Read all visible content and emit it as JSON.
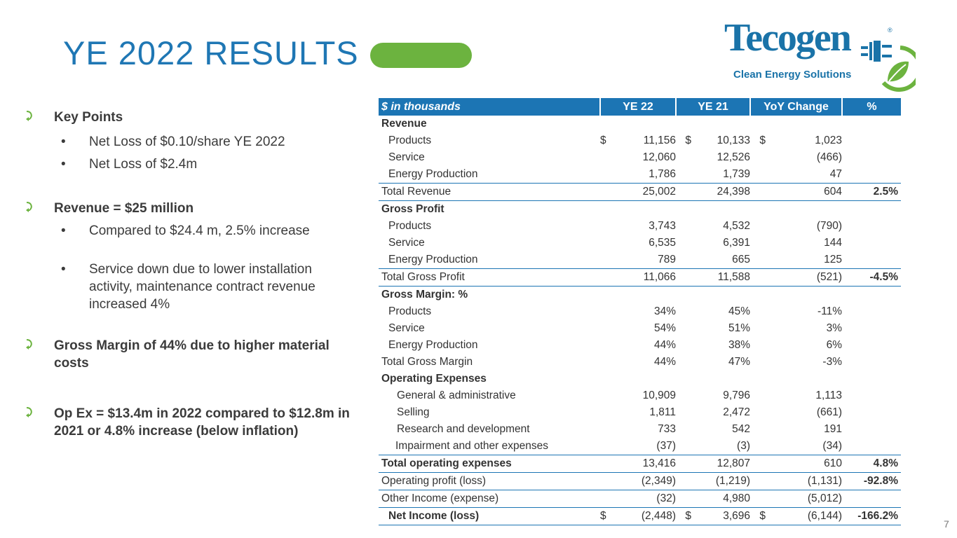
{
  "title": "YE 2022 RESULTS",
  "page_number": "7",
  "logo": {
    "word": "Tecogen",
    "tagline": "Clean Energy Solutions",
    "reg": "®"
  },
  "colors": {
    "brand_blue": "#1c75b4",
    "accent_green": "#6cb33f"
  },
  "key_points": {
    "heading": "Key Points",
    "items": [
      "Net Loss of $0.10/share YE 2022",
      "Net Loss of $2.4m"
    ]
  },
  "revenue_point": {
    "heading": "Revenue = $25 million",
    "items": [
      "Compared to $24.4 m, 2.5% increase",
      "Service down due to lower installation activity, maintenance contract revenue increased 4%"
    ]
  },
  "margin_point": {
    "heading": "Gross Margin of 44% due to higher material costs"
  },
  "opex_point": {
    "heading": "Op Ex = $13.4m in 2022 compared to $12.8m in 2021 or 4.8% increase (below inflation)"
  },
  "bullet_glyph": "•",
  "table": {
    "headers": [
      "$ in thousands",
      "YE 22",
      "YE 21",
      "YoY Change",
      "%"
    ],
    "rows": [
      {
        "label": "Revenue",
        "ye22": "",
        "ye21": "",
        "yoy": "",
        "pct": "",
        "d1": "",
        "d2": "",
        "d3": ""
      },
      {
        "label": "Products",
        "ye22": "11,156",
        "ye21": "10,133",
        "yoy": "1,023",
        "pct": "",
        "d1": "$",
        "d2": "$",
        "d3": "$"
      },
      {
        "label": "Service",
        "ye22": "12,060",
        "ye21": "12,526",
        "yoy": "(466)",
        "pct": "",
        "d1": "",
        "d2": "",
        "d3": ""
      },
      {
        "label": "Energy Production",
        "ye22": "1,786",
        "ye21": "1,739",
        "yoy": "47",
        "pct": "",
        "d1": "",
        "d2": "",
        "d3": ""
      },
      {
        "label": "Total Revenue",
        "ye22": "25,002",
        "ye21": "24,398",
        "yoy": "604",
        "pct": "2.5%",
        "d1": "",
        "d2": "",
        "d3": ""
      },
      {
        "label": "Gross Profit",
        "ye22": "",
        "ye21": "",
        "yoy": "",
        "pct": "",
        "d1": "",
        "d2": "",
        "d3": ""
      },
      {
        "label": "Products",
        "ye22": "3,743",
        "ye21": "4,532",
        "yoy": "(790)",
        "pct": "",
        "d1": "",
        "d2": "",
        "d3": ""
      },
      {
        "label": "Service",
        "ye22": "6,535",
        "ye21": "6,391",
        "yoy": "144",
        "pct": "",
        "d1": "",
        "d2": "",
        "d3": ""
      },
      {
        "label": "Energy Production",
        "ye22": "789",
        "ye21": "665",
        "yoy": "125",
        "pct": "",
        "d1": "",
        "d2": "",
        "d3": ""
      },
      {
        "label": "Total Gross Profit",
        "ye22": "11,066",
        "ye21": "11,588",
        "yoy": "(521)",
        "pct": "-4.5%",
        "d1": "",
        "d2": "",
        "d3": ""
      },
      {
        "label": "Gross Margin: %",
        "ye22": "",
        "ye21": "",
        "yoy": "",
        "pct": "",
        "d1": "",
        "d2": "",
        "d3": ""
      },
      {
        "label": "Products",
        "ye22": "34%",
        "ye21": "45%",
        "yoy": "-11%",
        "pct": "",
        "d1": "",
        "d2": "",
        "d3": ""
      },
      {
        "label": "Service",
        "ye22": "54%",
        "ye21": "51%",
        "yoy": "3%",
        "pct": "",
        "d1": "",
        "d2": "",
        "d3": ""
      },
      {
        "label": "Energy Production",
        "ye22": "44%",
        "ye21": "38%",
        "yoy": "6%",
        "pct": "",
        "d1": "",
        "d2": "",
        "d3": ""
      },
      {
        "label": "Total Gross Margin",
        "ye22": "44%",
        "ye21": "47%",
        "yoy": "-3%",
        "pct": "",
        "d1": "",
        "d2": "",
        "d3": ""
      },
      {
        "label": "Operating Expenses",
        "ye22": "",
        "ye21": "",
        "yoy": "",
        "pct": "",
        "d1": "",
        "d2": "",
        "d3": ""
      },
      {
        "label": "General & administrative",
        "ye22": "10,909",
        "ye21": "9,796",
        "yoy": "1,113",
        "pct": "",
        "d1": "",
        "d2": "",
        "d3": ""
      },
      {
        "label": "Selling",
        "ye22": "1,811",
        "ye21": "2,472",
        "yoy": "(661)",
        "pct": "",
        "d1": "",
        "d2": "",
        "d3": ""
      },
      {
        "label": "Research and development",
        "ye22": "733",
        "ye21": "542",
        "yoy": "191",
        "pct": "",
        "d1": "",
        "d2": "",
        "d3": ""
      },
      {
        "label": "Impairment and other expenses",
        "ye22": "(37)",
        "ye21": "(3)",
        "yoy": "(34)",
        "pct": "",
        "d1": "",
        "d2": "",
        "d3": ""
      },
      {
        "label": "Total operating expenses",
        "ye22": "13,416",
        "ye21": "12,807",
        "yoy": "610",
        "pct": "4.8%",
        "d1": "",
        "d2": "",
        "d3": ""
      },
      {
        "label": "Operating profit (loss)",
        "ye22": "(2,349)",
        "ye21": "(1,219)",
        "yoy": "(1,131)",
        "pct": "-92.8%",
        "d1": "",
        "d2": "",
        "d3": ""
      },
      {
        "label": "Other Income (expense)",
        "ye22": "(32)",
        "ye21": "4,980",
        "yoy": "(5,012)",
        "pct": "",
        "d1": "",
        "d2": "",
        "d3": ""
      },
      {
        "label": "Net Income (loss)",
        "ye22": "(2,448)",
        "ye21": "3,696",
        "yoy": "(6,144)",
        "pct": "-166.2%",
        "d1": "$",
        "d2": "$",
        "d3": "$"
      }
    ]
  }
}
